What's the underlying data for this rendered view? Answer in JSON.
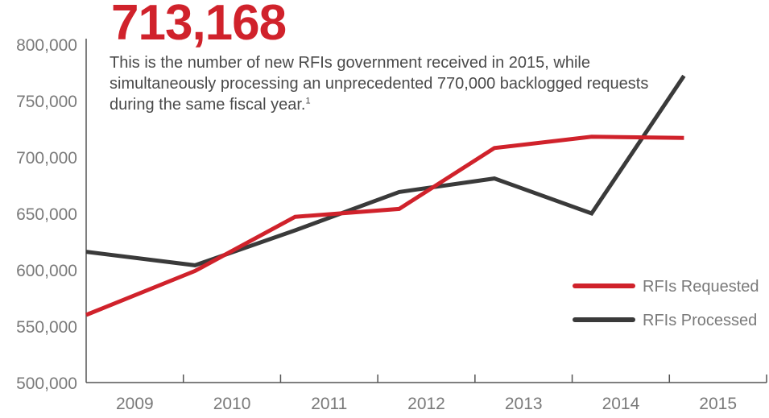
{
  "headline": "713,168",
  "subtext": {
    "text": "This is the number of new RFIs government received in 2015, while simultaneously processing an unprecedented 770,000 backlogged requests during the same fiscal year.",
    "footnote": "1"
  },
  "colors": {
    "requested": "#d0222b",
    "processed": "#3a3a3a",
    "axis": "#555555",
    "text": "#7a7a7a"
  },
  "chart_data": {
    "type": "line",
    "x_labels": [
      "2009",
      "2010",
      "2011",
      "2012",
      "2013",
      "2014",
      "2015"
    ],
    "y_ticks": [
      "800,000",
      "750,000",
      "700,000",
      "650,000",
      "600,000",
      "550,000",
      "500,000"
    ],
    "ylim": [
      500000,
      800000
    ],
    "grid": false,
    "legend_position": "bottom-right",
    "series": [
      {
        "name": "RFIs Requested",
        "color": "#d0222b",
        "points": [
          {
            "x": 2008.5,
            "y": 560000
          },
          {
            "x": 2009.62,
            "y": 599000
          },
          {
            "x": 2010.65,
            "y": 647000
          },
          {
            "x": 2011.72,
            "y": 654000
          },
          {
            "x": 2012.7,
            "y": 708000
          },
          {
            "x": 2013.7,
            "y": 718000
          },
          {
            "x": 2014.65,
            "y": 717000
          }
        ]
      },
      {
        "name": "RFIs Processed",
        "color": "#3a3a3a",
        "points": [
          {
            "x": 2008.5,
            "y": 616000
          },
          {
            "x": 2009.62,
            "y": 604000
          },
          {
            "x": 2010.65,
            "y": 635000
          },
          {
            "x": 2011.72,
            "y": 669000
          },
          {
            "x": 2012.7,
            "y": 681000
          },
          {
            "x": 2013.7,
            "y": 650000
          },
          {
            "x": 2014.65,
            "y": 772000
          }
        ]
      }
    ]
  }
}
